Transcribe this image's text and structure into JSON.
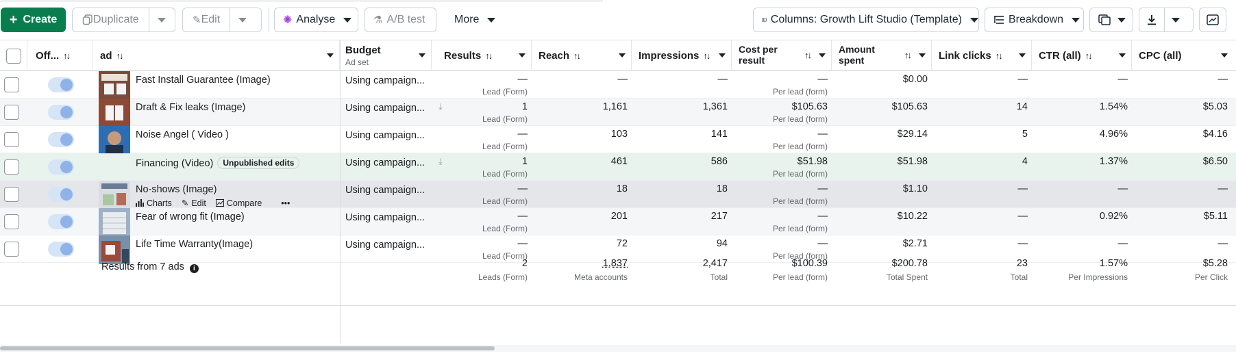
{
  "toolbar": {
    "create": "Create",
    "duplicate": "Duplicate",
    "edit": "Edit",
    "analyse": "Analyse",
    "ab_test": "A/B test",
    "more": "More",
    "columns": "Columns: Growth Lift Studio (Template)",
    "breakdown": "Breakdown"
  },
  "headers": {
    "off": "Off...",
    "ad": "ad",
    "budget": "Budget",
    "budget_sub": "Ad set",
    "results": "Results",
    "reach": "Reach",
    "impressions": "Impressions",
    "cost_per_result_1": "Cost per",
    "cost_per_result_2": "result",
    "amount_spent_1": "Amount",
    "amount_spent_2": "spent",
    "link_clicks": "Link clicks",
    "ctr": "CTR (all)",
    "cpc": "CPC (all)",
    "sort_glyph": "↑↓"
  },
  "rows": [
    {
      "name": "Fast Install Guarantee (Image)",
      "badge": "",
      "budget": "Using campaign...",
      "results": "—",
      "results_sub": "Lead (Form)",
      "reach": "—",
      "impressions": "—",
      "cpr": "—",
      "cpr_sub": "Per lead (form)",
      "spent": "$0.00",
      "clicks": "—",
      "ctr": "—",
      "cpc": "—"
    },
    {
      "name": "Draft & Fix leaks (Image)",
      "badge": "",
      "budget": "Using campaign...",
      "results": "1",
      "results_sub": "Lead (Form)",
      "reach": "1,161",
      "impressions": "1,361",
      "cpr": "$105.63",
      "cpr_sub": "Per lead (form)",
      "spent": "$105.63",
      "clicks": "14",
      "ctr": "1.54%",
      "cpc": "$5.03"
    },
    {
      "name": "Noise Angel ( Video )",
      "badge": "",
      "budget": "Using campaign...",
      "results": "—",
      "results_sub": "Lead (Form)",
      "reach": "103",
      "impressions": "141",
      "cpr": "—",
      "cpr_sub": "Per lead (form)",
      "spent": "$29.14",
      "clicks": "5",
      "ctr": "4.96%",
      "cpc": "$4.16"
    },
    {
      "name": "Financing (Video)",
      "badge": "Unpublished edits",
      "budget": "Using campaign...",
      "results": "1",
      "results_sub": "Lead (Form)",
      "reach": "461",
      "impressions": "586",
      "cpr": "$51.98",
      "cpr_sub": "Per lead (form)",
      "spent": "$51.98",
      "clicks": "4",
      "ctr": "1.37%",
      "cpc": "$6.50"
    },
    {
      "name": "No-shows (Image)",
      "badge": "",
      "budget": "Using campaign...",
      "results": "—",
      "results_sub": "Lead (Form)",
      "reach": "18",
      "impressions": "18",
      "cpr": "—",
      "cpr_sub": "Per lead (form)",
      "spent": "$1.10",
      "clicks": "—",
      "ctr": "—",
      "cpc": "—"
    },
    {
      "name": "Fear of wrong fit (Image)",
      "badge": "",
      "budget": "Using campaign...",
      "results": "—",
      "results_sub": "Lead (Form)",
      "reach": "201",
      "impressions": "217",
      "cpr": "—",
      "cpr_sub": "Per lead (form)",
      "spent": "$10.22",
      "clicks": "—",
      "ctr": "0.92%",
      "cpc": "$5.11"
    },
    {
      "name": "Life Time Warranty(Image)",
      "badge": "",
      "budget": "Using campaign...",
      "results": "—",
      "results_sub": "Lead (Form)",
      "reach": "72",
      "impressions": "94",
      "cpr": "—",
      "cpr_sub": "Per lead (form)",
      "spent": "$2.71",
      "clicks": "—",
      "ctr": "—",
      "cpc": "—"
    }
  ],
  "row_actions": {
    "charts": "Charts",
    "edit": "Edit",
    "compare": "Compare",
    "more": "•••"
  },
  "footer": {
    "label": "Results from 7 ads",
    "results": "2",
    "results_sub": "Leads (Form)",
    "reach": "1,837",
    "reach_sub": "Meta accounts",
    "impressions": "2,417",
    "impressions_sub": "Total",
    "cpr": "$100.39",
    "cpr_sub": "Per lead (form)",
    "spent": "$200.78",
    "spent_sub": "Total Spent",
    "clicks": "23",
    "clicks_sub": "Total",
    "ctr": "1.57%",
    "ctr_sub": "Per Impressions",
    "cpc": "$5.28",
    "cpc_sub": "Per Click"
  },
  "colors": {
    "accent": "#0a7d4f",
    "highlight_row": "#e7f3ec",
    "hover_row": "#e4e6e9"
  }
}
